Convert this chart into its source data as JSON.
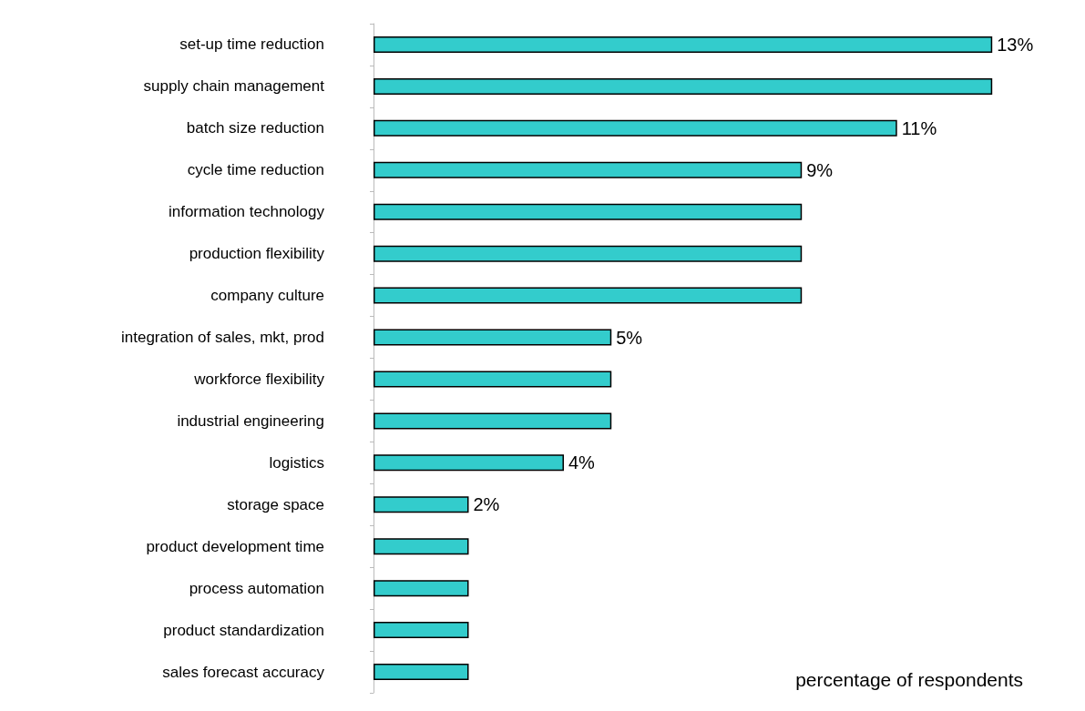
{
  "chart_data": {
    "type": "bar",
    "orientation": "horizontal",
    "xlabel": "percentage of respondents",
    "categories": [
      "set-up time reduction",
      "supply chain management",
      "batch size reduction",
      "cycle time reduction",
      "information technology",
      "production flexibility",
      "company culture",
      "integration of sales, mkt, prod",
      "workforce flexibility",
      "industrial engineering",
      "logistics",
      "storage space",
      "product development time",
      "process automation",
      "product standardization",
      "sales forecast accuracy"
    ],
    "values": [
      13,
      13,
      11,
      9,
      9,
      9,
      9,
      5,
      5,
      5,
      4,
      2,
      2,
      2,
      2,
      2
    ],
    "value_labels": [
      "13%",
      null,
      "11%",
      "9%",
      null,
      null,
      null,
      "5%",
      null,
      null,
      "4%",
      "2%",
      null,
      null,
      null,
      null
    ],
    "color": "#33cccc"
  }
}
